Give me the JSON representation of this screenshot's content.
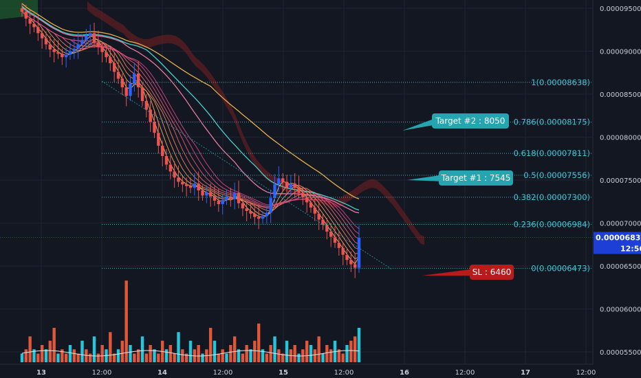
{
  "colors": {
    "background": "#131722",
    "grid": "#1f2433",
    "bull": "#2962ff",
    "bear": "#ef5350",
    "fib": "#2bb3c0",
    "current_price": "#1e3fd6",
    "target_callout": "#26a5b0",
    "sl_callout": "#b71c1c",
    "sma_slow": "#e8b04a",
    "sma_mid": "#48d1cc",
    "sma_fast": "#e87aa0",
    "volume_bull": "#26c6da",
    "volume_bear": "#e0573a",
    "volume_ma": "#e8e8e8"
  },
  "chart_data": {
    "type": "candlestick",
    "x_ticks": [
      "13",
      "12:00",
      "14",
      "12:00",
      "15",
      "12:00",
      "16",
      "12:00",
      "17",
      "12:00"
    ],
    "y_ticks": [
      "0.00009500",
      "0.00009000",
      "0.00008500",
      "0.00008000",
      "0.00007500",
      "0.00007000",
      "0.00006500",
      "0.00006000",
      "0.00005500"
    ],
    "ylim": [
      5.45e-05,
      9.55e-05
    ],
    "current_price": "0.00006832",
    "countdown": "12:56",
    "fib_levels": [
      {
        "ratio": "1",
        "price": 8.638e-05,
        "label": "1(0.00008638)"
      },
      {
        "ratio": "0.786",
        "price": 8.175e-05,
        "label": "0.786(0.00008175)"
      },
      {
        "ratio": "0.618",
        "price": 7.811e-05,
        "label": "0.618(0.00007811)"
      },
      {
        "ratio": "0.5",
        "price": 7.556e-05,
        "label": "0.5(0.00007556)"
      },
      {
        "ratio": "0.382",
        "price": 7.3e-05,
        "label": "0.382(0.00007300)"
      },
      {
        "ratio": "0.236",
        "price": 6.984e-05,
        "label": "0.236(0.00006984)"
      },
      {
        "ratio": "0",
        "price": 6.473e-05,
        "label": "0(0.00006473)"
      }
    ],
    "callouts": [
      {
        "text": "Target #2 : 8050",
        "kind": "target"
      },
      {
        "text": "Target #1 : 7545",
        "kind": "target"
      },
      {
        "text": "SL : 6460",
        "kind": "stop"
      }
    ],
    "closes": [
      9.46e-05,
      9.38e-05,
      9.32e-05,
      9.28e-05,
      9.21e-05,
      9.15e-05,
      9.08e-05,
      9.02e-05,
      8.99e-05,
      8.97e-05,
      8.93e-05,
      8.96e-05,
      9e-05,
      9.03e-05,
      9.08e-05,
      9.13e-05,
      9.18e-05,
      9.21e-05,
      9.1e-05,
      9.05e-05,
      8.99e-05,
      8.93e-05,
      8.86e-05,
      8.76e-05,
      8.68e-05,
      8.58e-05,
      8.48e-05,
      8.62e-05,
      8.74e-05,
      8.58e-05,
      8.42e-05,
      8.32e-05,
      8.18e-05,
      8.05e-05,
      7.9e-05,
      7.78e-05,
      7.68e-05,
      7.6e-05,
      7.53e-05,
      7.48e-05,
      7.45e-05,
      7.43e-05,
      7.41e-05,
      7.46e-05,
      7.38e-05,
      7.32e-05,
      7.36e-05,
      7.31e-05,
      7.26e-05,
      7.22e-05,
      7.27e-05,
      7.31e-05,
      7.28e-05,
      7.35e-05,
      7.23e-05,
      7.17e-05,
      7.14e-05,
      7.11e-05,
      7.07e-05,
      7.05e-05,
      7.08e-05,
      7.12e-05,
      7.29e-05,
      7.45e-05,
      7.52e-05,
      7.48e-05,
      7.41e-05,
      7.46e-05,
      7.41e-05,
      7.35e-05,
      7.3e-05,
      7.24e-05,
      7.18e-05,
      7.11e-05,
      7.04e-05,
      6.98e-05,
      6.9e-05,
      6.84e-05,
      6.77e-05,
      6.71e-05,
      6.63e-05,
      6.57e-05,
      6.52e-05,
      6.48e-05,
      6.83e-05
    ],
    "volumes": [
      2,
      3,
      6,
      3,
      2,
      4,
      3,
      5,
      8,
      2,
      3,
      2,
      4,
      3,
      2,
      5,
      3,
      2,
      6,
      2,
      4,
      3,
      7,
      2,
      3,
      5,
      19,
      4,
      2,
      3,
      6,
      2,
      4,
      3,
      2,
      5,
      3,
      4,
      2,
      7,
      3,
      2,
      5,
      3,
      4,
      2,
      3,
      8,
      5,
      2,
      3,
      2,
      4,
      6,
      3,
      2,
      4,
      3,
      5,
      9,
      3,
      2,
      4,
      6,
      3,
      2,
      5,
      3,
      4,
      2,
      3,
      5,
      4,
      3,
      6,
      2,
      4,
      3,
      5,
      3,
      2,
      4,
      5,
      6,
      8
    ]
  }
}
